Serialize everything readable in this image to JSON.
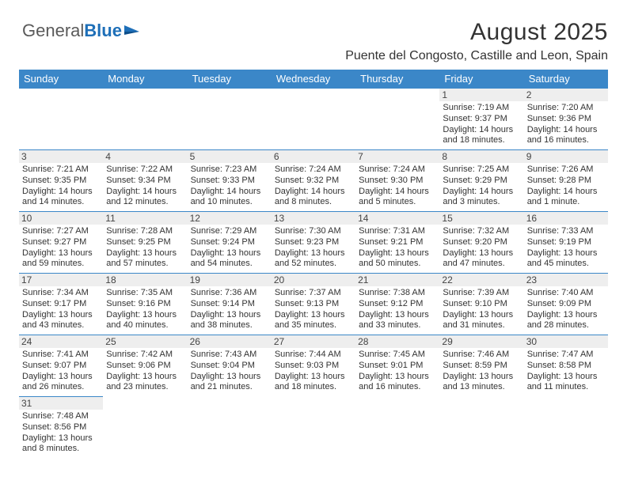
{
  "logo": {
    "part1": "General",
    "part2": "Blue"
  },
  "header": {
    "title": "August 2025",
    "subtitle": "Puente del Congosto, Castille and Leon, Spain"
  },
  "colors": {
    "header_bg": "#3b87c8",
    "header_text": "#ffffff",
    "daynum_bg": "#eeeeee",
    "border": "#3b87c8",
    "logo_gray": "#5a5a5a",
    "logo_blue": "#1e6fb8"
  },
  "weekdays": [
    "Sunday",
    "Monday",
    "Tuesday",
    "Wednesday",
    "Thursday",
    "Friday",
    "Saturday"
  ],
  "weeks": [
    [
      null,
      null,
      null,
      null,
      null,
      {
        "n": "1",
        "sunrise": "Sunrise: 7:19 AM",
        "sunset": "Sunset: 9:37 PM",
        "day1": "Daylight: 14 hours",
        "day2": "and 18 minutes."
      },
      {
        "n": "2",
        "sunrise": "Sunrise: 7:20 AM",
        "sunset": "Sunset: 9:36 PM",
        "day1": "Daylight: 14 hours",
        "day2": "and 16 minutes."
      }
    ],
    [
      {
        "n": "3",
        "sunrise": "Sunrise: 7:21 AM",
        "sunset": "Sunset: 9:35 PM",
        "day1": "Daylight: 14 hours",
        "day2": "and 14 minutes."
      },
      {
        "n": "4",
        "sunrise": "Sunrise: 7:22 AM",
        "sunset": "Sunset: 9:34 PM",
        "day1": "Daylight: 14 hours",
        "day2": "and 12 minutes."
      },
      {
        "n": "5",
        "sunrise": "Sunrise: 7:23 AM",
        "sunset": "Sunset: 9:33 PM",
        "day1": "Daylight: 14 hours",
        "day2": "and 10 minutes."
      },
      {
        "n": "6",
        "sunrise": "Sunrise: 7:24 AM",
        "sunset": "Sunset: 9:32 PM",
        "day1": "Daylight: 14 hours",
        "day2": "and 8 minutes."
      },
      {
        "n": "7",
        "sunrise": "Sunrise: 7:24 AM",
        "sunset": "Sunset: 9:30 PM",
        "day1": "Daylight: 14 hours",
        "day2": "and 5 minutes."
      },
      {
        "n": "8",
        "sunrise": "Sunrise: 7:25 AM",
        "sunset": "Sunset: 9:29 PM",
        "day1": "Daylight: 14 hours",
        "day2": "and 3 minutes."
      },
      {
        "n": "9",
        "sunrise": "Sunrise: 7:26 AM",
        "sunset": "Sunset: 9:28 PM",
        "day1": "Daylight: 14 hours",
        "day2": "and 1 minute."
      }
    ],
    [
      {
        "n": "10",
        "sunrise": "Sunrise: 7:27 AM",
        "sunset": "Sunset: 9:27 PM",
        "day1": "Daylight: 13 hours",
        "day2": "and 59 minutes."
      },
      {
        "n": "11",
        "sunrise": "Sunrise: 7:28 AM",
        "sunset": "Sunset: 9:25 PM",
        "day1": "Daylight: 13 hours",
        "day2": "and 57 minutes."
      },
      {
        "n": "12",
        "sunrise": "Sunrise: 7:29 AM",
        "sunset": "Sunset: 9:24 PM",
        "day1": "Daylight: 13 hours",
        "day2": "and 54 minutes."
      },
      {
        "n": "13",
        "sunrise": "Sunrise: 7:30 AM",
        "sunset": "Sunset: 9:23 PM",
        "day1": "Daylight: 13 hours",
        "day2": "and 52 minutes."
      },
      {
        "n": "14",
        "sunrise": "Sunrise: 7:31 AM",
        "sunset": "Sunset: 9:21 PM",
        "day1": "Daylight: 13 hours",
        "day2": "and 50 minutes."
      },
      {
        "n": "15",
        "sunrise": "Sunrise: 7:32 AM",
        "sunset": "Sunset: 9:20 PM",
        "day1": "Daylight: 13 hours",
        "day2": "and 47 minutes."
      },
      {
        "n": "16",
        "sunrise": "Sunrise: 7:33 AM",
        "sunset": "Sunset: 9:19 PM",
        "day1": "Daylight: 13 hours",
        "day2": "and 45 minutes."
      }
    ],
    [
      {
        "n": "17",
        "sunrise": "Sunrise: 7:34 AM",
        "sunset": "Sunset: 9:17 PM",
        "day1": "Daylight: 13 hours",
        "day2": "and 43 minutes."
      },
      {
        "n": "18",
        "sunrise": "Sunrise: 7:35 AM",
        "sunset": "Sunset: 9:16 PM",
        "day1": "Daylight: 13 hours",
        "day2": "and 40 minutes."
      },
      {
        "n": "19",
        "sunrise": "Sunrise: 7:36 AM",
        "sunset": "Sunset: 9:14 PM",
        "day1": "Daylight: 13 hours",
        "day2": "and 38 minutes."
      },
      {
        "n": "20",
        "sunrise": "Sunrise: 7:37 AM",
        "sunset": "Sunset: 9:13 PM",
        "day1": "Daylight: 13 hours",
        "day2": "and 35 minutes."
      },
      {
        "n": "21",
        "sunrise": "Sunrise: 7:38 AM",
        "sunset": "Sunset: 9:12 PM",
        "day1": "Daylight: 13 hours",
        "day2": "and 33 minutes."
      },
      {
        "n": "22",
        "sunrise": "Sunrise: 7:39 AM",
        "sunset": "Sunset: 9:10 PM",
        "day1": "Daylight: 13 hours",
        "day2": "and 31 minutes."
      },
      {
        "n": "23",
        "sunrise": "Sunrise: 7:40 AM",
        "sunset": "Sunset: 9:09 PM",
        "day1": "Daylight: 13 hours",
        "day2": "and 28 minutes."
      }
    ],
    [
      {
        "n": "24",
        "sunrise": "Sunrise: 7:41 AM",
        "sunset": "Sunset: 9:07 PM",
        "day1": "Daylight: 13 hours",
        "day2": "and 26 minutes."
      },
      {
        "n": "25",
        "sunrise": "Sunrise: 7:42 AM",
        "sunset": "Sunset: 9:06 PM",
        "day1": "Daylight: 13 hours",
        "day2": "and 23 minutes."
      },
      {
        "n": "26",
        "sunrise": "Sunrise: 7:43 AM",
        "sunset": "Sunset: 9:04 PM",
        "day1": "Daylight: 13 hours",
        "day2": "and 21 minutes."
      },
      {
        "n": "27",
        "sunrise": "Sunrise: 7:44 AM",
        "sunset": "Sunset: 9:03 PM",
        "day1": "Daylight: 13 hours",
        "day2": "and 18 minutes."
      },
      {
        "n": "28",
        "sunrise": "Sunrise: 7:45 AM",
        "sunset": "Sunset: 9:01 PM",
        "day1": "Daylight: 13 hours",
        "day2": "and 16 minutes."
      },
      {
        "n": "29",
        "sunrise": "Sunrise: 7:46 AM",
        "sunset": "Sunset: 8:59 PM",
        "day1": "Daylight: 13 hours",
        "day2": "and 13 minutes."
      },
      {
        "n": "30",
        "sunrise": "Sunrise: 7:47 AM",
        "sunset": "Sunset: 8:58 PM",
        "day1": "Daylight: 13 hours",
        "day2": "and 11 minutes."
      }
    ],
    [
      {
        "n": "31",
        "sunrise": "Sunrise: 7:48 AM",
        "sunset": "Sunset: 8:56 PM",
        "day1": "Daylight: 13 hours",
        "day2": "and 8 minutes."
      },
      null,
      null,
      null,
      null,
      null,
      null
    ]
  ]
}
